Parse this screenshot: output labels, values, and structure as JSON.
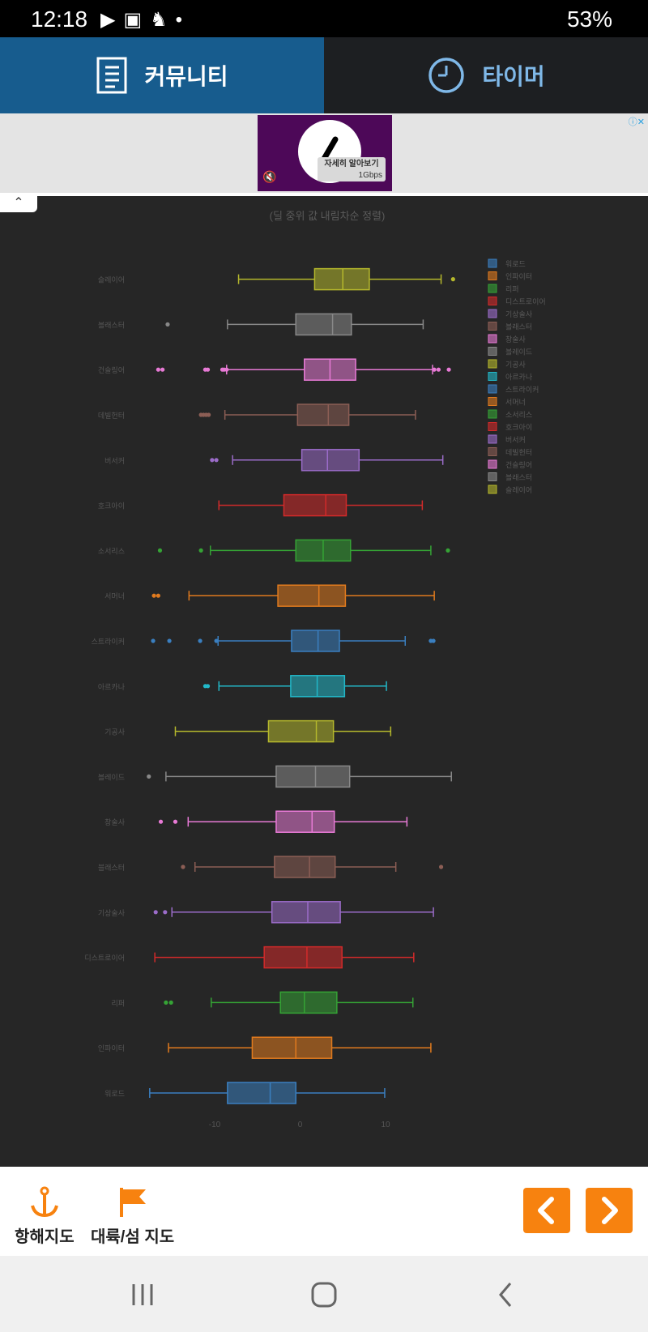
{
  "status_bar": {
    "time": "12:18",
    "battery": "53%"
  },
  "tabs": [
    {
      "label": "커뮤니티",
      "icon": "document-icon"
    },
    {
      "label": "타이머",
      "icon": "clock-icon"
    }
  ],
  "ad": {
    "button_label": "자세히 알아보기",
    "sub_label": "1Gbps"
  },
  "chart_data": {
    "type": "box",
    "orientation": "horizontal",
    "title": "(딜 중위 값 내림차순 정렬)",
    "xlim": [
      -17.5,
      18
    ],
    "xticks": [
      -10,
      0,
      10
    ],
    "legend_position": "right",
    "series": [
      {
        "name": "워로드",
        "color": "#3a7fc0",
        "min": -17.6,
        "q1": -8.5,
        "median": -3.5,
        "q3": -0.5,
        "max": 9.9,
        "outliers": []
      },
      {
        "name": "인파이터",
        "color": "#e07a1e",
        "min": -15.4,
        "q1": -5.6,
        "median": -0.5,
        "q3": 3.7,
        "max": 15.3,
        "outliers": []
      },
      {
        "name": "리퍼",
        "color": "#35a335",
        "min": -10.4,
        "q1": -2.3,
        "median": 0.5,
        "q3": 4.3,
        "max": 13.2,
        "outliers": [
          -15.7,
          -15.1
        ]
      },
      {
        "name": "디스트로이어",
        "color": "#d22a2a",
        "min": -17.0,
        "q1": -4.2,
        "median": 0.8,
        "q3": 4.9,
        "max": 13.3,
        "outliers": []
      },
      {
        "name": "기상술사",
        "color": "#9b6cc9",
        "min": -15.0,
        "q1": -3.3,
        "median": 0.9,
        "q3": 4.7,
        "max": 15.6,
        "outliers": [
          -16.9,
          -15.8
        ]
      },
      {
        "name": "블래스터",
        "color": "#8c5e55",
        "min": -12.3,
        "q1": -3.0,
        "median": 1.1,
        "q3": 4.1,
        "max": 11.2,
        "outliers": [
          -13.7,
          16.5
        ]
      },
      {
        "name": "창술사",
        "color": "#e87ad6",
        "min": -13.1,
        "q1": -2.8,
        "median": 1.4,
        "q3": 4.0,
        "max": 12.5,
        "outliers": [
          -16.3,
          -14.6
        ]
      },
      {
        "name": "블레이드",
        "color": "#888888",
        "min": -15.7,
        "q1": -2.8,
        "median": 1.8,
        "q3": 5.8,
        "max": 17.7,
        "outliers": [
          -17.7
        ]
      },
      {
        "name": "기공사",
        "color": "#b5b82c",
        "min": -14.6,
        "q1": -3.7,
        "median": 1.9,
        "q3": 3.9,
        "max": 10.6,
        "outliers": []
      },
      {
        "name": "아르카나",
        "color": "#22b8c8",
        "min": -9.5,
        "q1": -1.1,
        "median": 2.0,
        "q3": 5.2,
        "max": 10.1,
        "outliers": [
          -11.1,
          -10.8
        ]
      },
      {
        "name": "스트라이커",
        "color": "#3a7fc0",
        "min": -9.6,
        "q1": -1.0,
        "median": 2.1,
        "q3": 4.6,
        "max": 12.3,
        "outliers": [
          -17.2,
          -15.3,
          -11.7,
          -9.8,
          15.3,
          15.6
        ]
      },
      {
        "name": "서머너",
        "color": "#e07a1e",
        "min": -13.0,
        "q1": -2.6,
        "median": 2.2,
        "q3": 5.3,
        "max": 15.7,
        "outliers": [
          -17.1,
          -16.6
        ]
      },
      {
        "name": "소서리스",
        "color": "#35a335",
        "min": -10.5,
        "q1": -0.5,
        "median": 2.7,
        "q3": 5.9,
        "max": 15.3,
        "outliers": [
          -16.4,
          -11.6,
          17.3
        ]
      },
      {
        "name": "호크아이",
        "color": "#d22a2a",
        "min": -9.5,
        "q1": -1.9,
        "median": 3.0,
        "q3": 5.4,
        "max": 14.3,
        "outliers": []
      },
      {
        "name": "버서커",
        "color": "#9b6cc9",
        "min": -7.9,
        "q1": 0.2,
        "median": 3.2,
        "q3": 6.9,
        "max": 16.7,
        "outliers": [
          -10.3,
          -9.8
        ]
      },
      {
        "name": "데빌헌터",
        "color": "#8c5e55",
        "min": -8.8,
        "q1": -0.3,
        "median": 3.3,
        "q3": 5.7,
        "max": 13.5,
        "outliers": [
          -11.6,
          -11.3,
          -11.0,
          -10.7
        ]
      },
      {
        "name": "건슬링어",
        "color": "#e87ad6",
        "min": -8.6,
        "q1": 0.5,
        "median": 3.5,
        "q3": 6.5,
        "max": 15.5,
        "outliers": [
          -16.6,
          -16.1,
          -11.1,
          -10.8,
          -9.1,
          -8.9,
          -8.6,
          15.7,
          16.2,
          17.4
        ]
      },
      {
        "name": "블래스터",
        "color": "#888888",
        "min": -8.5,
        "q1": -0.5,
        "median": 3.8,
        "q3": 6.0,
        "max": 14.4,
        "outliers": [
          -15.5
        ]
      },
      {
        "name": "슬레이어",
        "color": "#b5b82c",
        "min": -7.2,
        "q1": 1.7,
        "median": 5.0,
        "q3": 8.1,
        "max": 16.5,
        "outliers": [
          17.9
        ]
      }
    ],
    "legend": [
      "워로드",
      "인파이터",
      "리퍼",
      "디스트로이어",
      "기상술사",
      "블래스터",
      "창술사",
      "블레이드",
      "기공사",
      "아르카나",
      "스트라이커",
      "서머너",
      "소서리스",
      "호크아이",
      "버서커",
      "데빌헌터",
      "건슬링어",
      "블래스터",
      "슬레이어"
    ],
    "legend_colors": [
      "#3a7fc0",
      "#e07a1e",
      "#35a335",
      "#d22a2a",
      "#9b6cc9",
      "#8c5e55",
      "#e87ad6",
      "#888888",
      "#b5b82c",
      "#22b8c8",
      "#3a7fc0",
      "#e07a1e",
      "#35a335",
      "#d22a2a",
      "#9b6cc9",
      "#8c5e55",
      "#e87ad6",
      "#888888",
      "#b5b82c"
    ]
  },
  "bottom_nav": {
    "nav_chart_label": "항해지도",
    "continent_map_label": "대륙/섬 지도",
    "accent": "#f7820f"
  }
}
